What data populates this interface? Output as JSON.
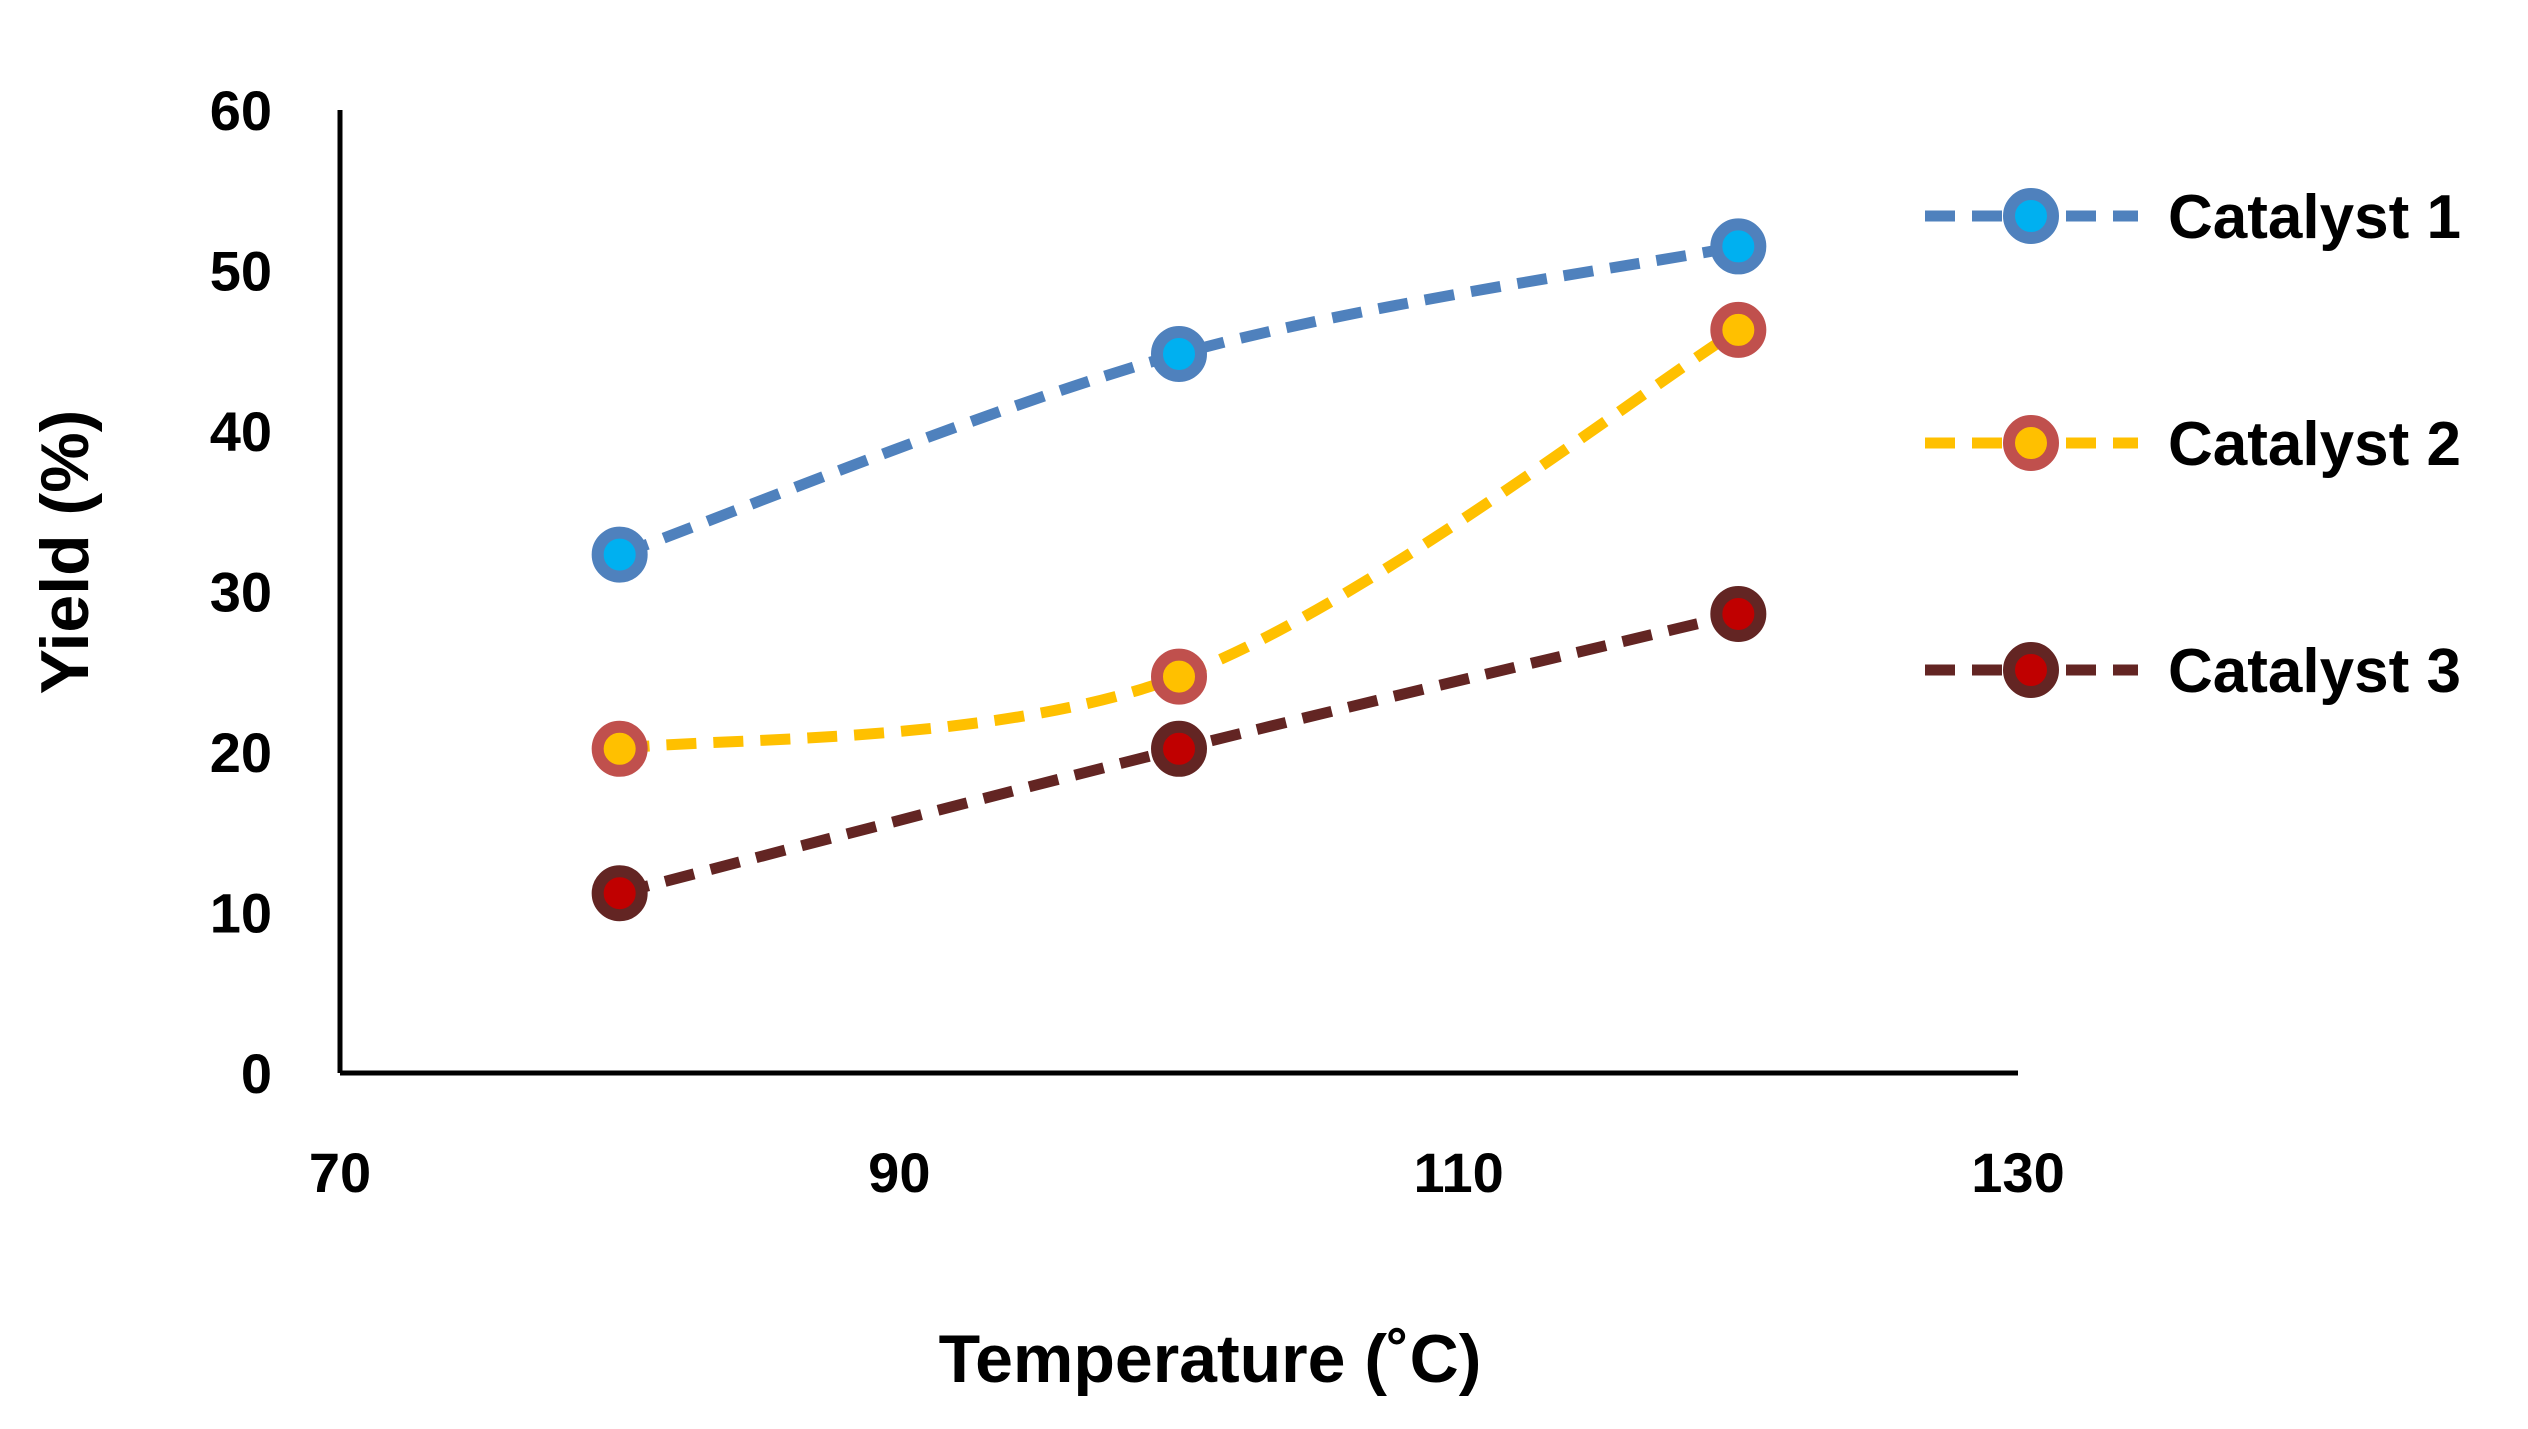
{
  "chart_data": {
    "type": "line",
    "title": "",
    "xlabel": "Temperature (˚C)",
    "ylabel": "Yield (%)",
    "xlim": [
      70,
      130
    ],
    "ylim": [
      0,
      60
    ],
    "xticks": [
      70,
      90,
      110,
      130
    ],
    "yticks": [
      0,
      10,
      20,
      30,
      40,
      50,
      60
    ],
    "legend_position": "right",
    "grid": false,
    "x": [
      80,
      100,
      120
    ],
    "series": [
      {
        "name": "Catalyst 1",
        "values": [
          32.3,
          44.8,
          51.5
        ],
        "line_color": "#4F81BD",
        "marker_edge": "#4F81BD",
        "marker_fill": "#00B0F0",
        "smooth": true
      },
      {
        "name": "Catalyst 2",
        "values": [
          20.2,
          24.7,
          46.3
        ],
        "line_color": "#FFC000",
        "marker_edge": "#C0504D",
        "marker_fill": "#FFC000",
        "smooth": true
      },
      {
        "name": "Catalyst 3",
        "values": [
          11.2,
          20.2,
          28.6
        ],
        "line_color": "#632523",
        "marker_edge": "#632523",
        "marker_fill": "#C00000",
        "smooth": true
      }
    ]
  }
}
